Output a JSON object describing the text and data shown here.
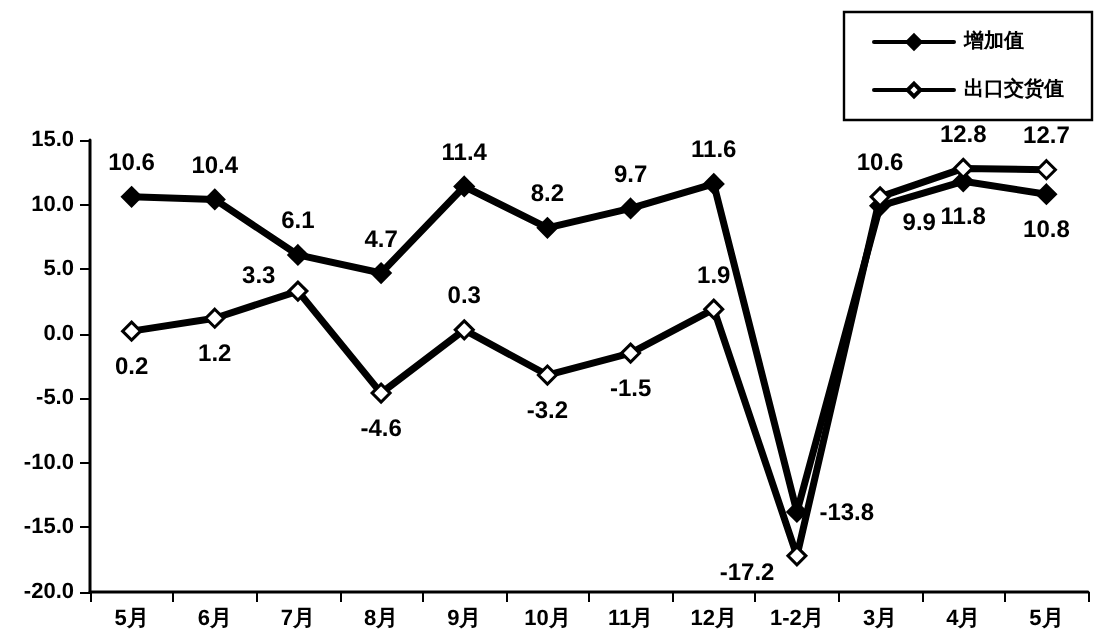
{
  "chart_data": {
    "type": "line",
    "categories": [
      "5月",
      "6月",
      "7月",
      "8月",
      "9月",
      "10月",
      "11月",
      "12月",
      "1-2月",
      "3月",
      "4月",
      "5月"
    ],
    "series": [
      {
        "name": "增加值",
        "color": "#000000",
        "values": [
          10.6,
          10.4,
          6.1,
          4.7,
          11.4,
          8.2,
          9.7,
          11.6,
          -13.8,
          9.9,
          11.8,
          10.8
        ]
      },
      {
        "name": "出口交货值",
        "color": "#000000",
        "values": [
          0.2,
          1.2,
          3.3,
          -4.6,
          0.3,
          -3.2,
          -1.5,
          1.9,
          -17.2,
          10.6,
          12.8,
          12.7
        ]
      }
    ],
    "ylim": [
      -20,
      15
    ],
    "yticks": [
      {
        "value": -20,
        "label": "-20.0"
      },
      {
        "value": -15,
        "label": "-15.0"
      },
      {
        "value": -10,
        "label": "-10.0"
      },
      {
        "value": -5,
        "label": "-5.0"
      },
      {
        "value": 0,
        "label": "0.0"
      },
      {
        "value": 5,
        "label": "5.0"
      },
      {
        "value": 10,
        "label": "10.0"
      },
      {
        "value": 15,
        "label": "15.0"
      }
    ],
    "grid": false,
    "legend": "top right",
    "marker": "diamond",
    "line_style": "solid",
    "data_labels": true
  }
}
